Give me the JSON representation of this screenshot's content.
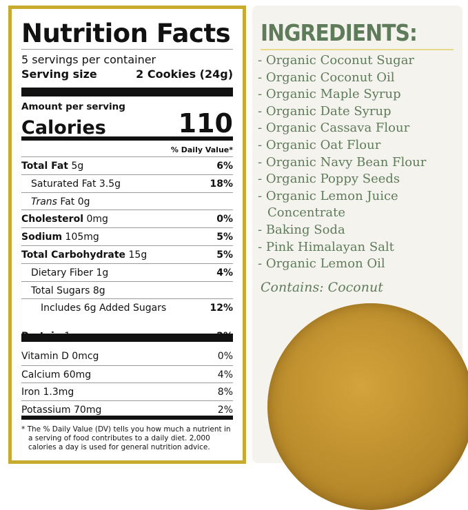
{
  "nutrition": {
    "title": "Nutrition Facts",
    "servings": "5 servings per container",
    "serving_size_label": "Serving size",
    "serving_size_value": "2 Cookies (24g)",
    "amount_per_serving": "Amount per serving",
    "calories_label": "Calories",
    "calories_value": "110",
    "dv_header": "% Daily Value*",
    "rows": [
      {
        "name": "Total Fat",
        "amount": "5g",
        "dv": "6%",
        "bold": true,
        "indent": 0
      },
      {
        "name": "Saturated Fat",
        "amount": "3.5g",
        "dv": "18%",
        "bold": false,
        "indent": 1
      },
      {
        "name": "Trans",
        "amount": "Fat 0g",
        "dv": "",
        "bold": false,
        "indent": 1
      },
      {
        "name": "Cholesterol",
        "amount": "0mg",
        "dv": "0%",
        "bold": true,
        "indent": 0
      },
      {
        "name": "Sodium",
        "amount": "105mg",
        "dv": "5%",
        "bold": true,
        "indent": 0
      },
      {
        "name": "Total Carbohydrate",
        "amount": "15g",
        "dv": "5%",
        "bold": true,
        "indent": 0
      },
      {
        "name": "Dietary Fiber",
        "amount": "1g",
        "dv": "4%",
        "bold": false,
        "indent": 1
      },
      {
        "name": "Total Sugars",
        "amount": "8g",
        "dv": "",
        "bold": false,
        "indent": 1
      },
      {
        "name": "Includes 6g Added Sugars",
        "amount": "",
        "dv": "12%",
        "bold": false,
        "indent": 2
      },
      {
        "name": "Protein",
        "amount": "1g",
        "dv": "2%",
        "bold": true,
        "indent": 0
      }
    ],
    "vitamins": [
      {
        "name": "Vitamin D 0mcg",
        "dv": "0%"
      },
      {
        "name": "Calcium 60mg",
        "dv": "4%"
      },
      {
        "name": "Iron 1.3mg",
        "dv": "8%"
      },
      {
        "name": "Potassium 70mg",
        "dv": "2%"
      }
    ],
    "footnote": "* The % Daily Value (DV) tells you how much a nutrient in a serving of food contributes to a daily diet. 2,000 calories a day is used for general nutrition advice."
  },
  "ingredients": {
    "title": "INGREDIENTS:",
    "items": [
      "Organic Coconut Sugar",
      "Organic Coconut Oil",
      "Organic Maple Syrup",
      "Organic Date Syrup",
      "Organic Cassava Flour",
      "Organic Oat Flour",
      "Organic Navy Bean Flour",
      "Organic Poppy Seeds",
      "Organic Lemon Juice Concentrate",
      "Baking Soda",
      "Pink Himalayan Salt",
      "Organic Lemon Oil"
    ],
    "contains": "Contains: Coconut"
  },
  "colors": {
    "border": "#c8ab2e",
    "green": "#5e7b5a",
    "panel": "#f5f3ee"
  }
}
